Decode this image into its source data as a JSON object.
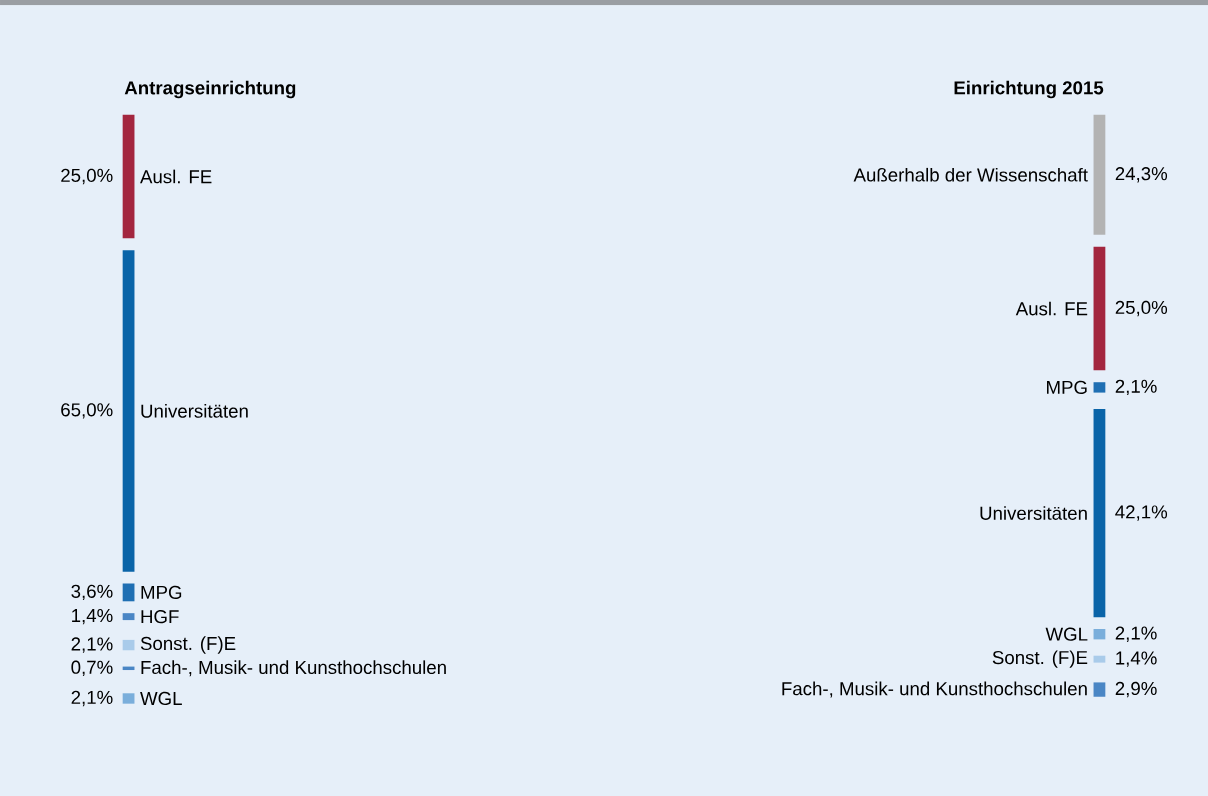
{
  "chart_data": {
    "type": "other",
    "categories": [
      "Ausl. FE",
      "Universitäten",
      "MPG",
      "HGF",
      "Sonst. (F)E",
      "Fach-, Musik- und Kunsthochschulen",
      "WGL",
      "Außerhalb der Wissenschaft",
      "Ausl. FE",
      "MPG",
      "Universitäten",
      "WGL",
      "Sonst. (F)E",
      "Fach-, Musik- und Kunsthochschulen"
    ],
    "series": [
      {
        "name": "Antragseinrichtung",
        "values": [
          25.0,
          65.0,
          3.6,
          1.4,
          2.1,
          0.7,
          2.1,
          null,
          null,
          null,
          null,
          null,
          null,
          null
        ],
        "value_labels": [
          "25,0%",
          "65,0%",
          "3,6%",
          "1,4%",
          "2,1%",
          "0,7%",
          "2,1%",
          null,
          null,
          null,
          null,
          null,
          null,
          null
        ],
        "colors": [
          "#a3263f",
          "#0a64a8",
          "#1f6fb3",
          "#4a86c5",
          "#a9cbea",
          "#4a86c5",
          "#7aaedb",
          null,
          null,
          null,
          null,
          null,
          null,
          null
        ]
      },
      {
        "name": "Einrichtung 2015",
        "values": [
          null,
          null,
          null,
          null,
          null,
          null,
          null,
          24.3,
          25.0,
          2.1,
          42.1,
          2.1,
          1.4,
          2.9
        ],
        "value_labels": [
          null,
          null,
          null,
          null,
          null,
          null,
          null,
          "24,3%",
          "25,0%",
          "2,1%",
          "42,1%",
          "2,1%",
          "1,4%",
          "2,9%"
        ],
        "colors": [
          null,
          null,
          null,
          null,
          null,
          null,
          null,
          "#b3b3b3",
          "#a3263f",
          "#1f6fb3",
          "#0a64a8",
          "#7aaedb",
          "#a9cbea",
          "#4a86c5"
        ]
      }
    ]
  }
}
